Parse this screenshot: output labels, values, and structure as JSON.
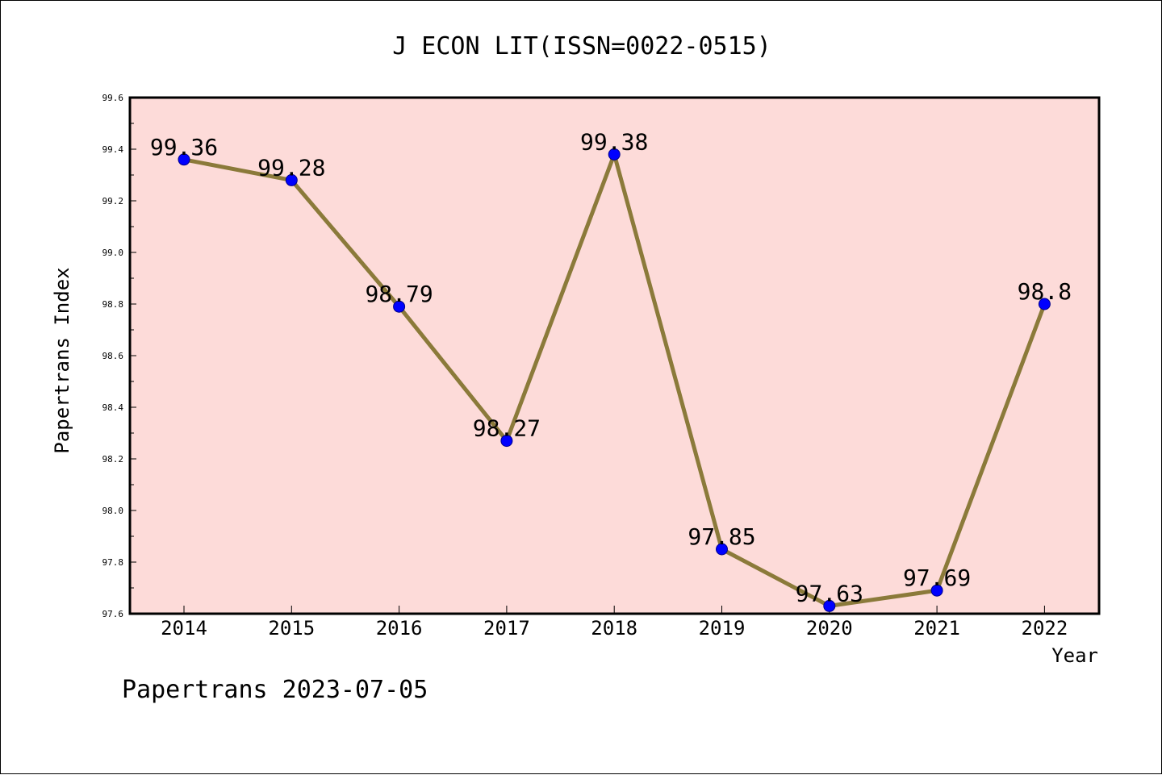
{
  "chart_data": {
    "type": "line",
    "title": "J ECON LIT(ISSN=0022-0515)",
    "xlabel": "Year",
    "ylabel": "Papertrans Index",
    "categories": [
      "2014",
      "2015",
      "2016",
      "2017",
      "2018",
      "2019",
      "2020",
      "2021",
      "2022"
    ],
    "values": [
      99.36,
      99.28,
      98.79,
      98.27,
      99.38,
      97.85,
      97.63,
      97.69,
      98.8
    ],
    "data_labels": [
      "99.36",
      "99.28",
      "98.79",
      "98.27",
      "99.38",
      "97.85",
      "97.63",
      "97.69",
      "98.8"
    ],
    "ylim": [
      97.6,
      99.6
    ],
    "yticks": [
      "97.6",
      "97.8",
      "98.0",
      "98.2",
      "98.4",
      "98.6",
      "98.8",
      "99.0",
      "99.2",
      "99.4",
      "99.6"
    ],
    "grid": false,
    "colors": {
      "plot_background": "#fddbd9",
      "line": "#8b7a3a",
      "marker": "#0000ff"
    }
  },
  "footer": "Papertrans 2023-07-05"
}
